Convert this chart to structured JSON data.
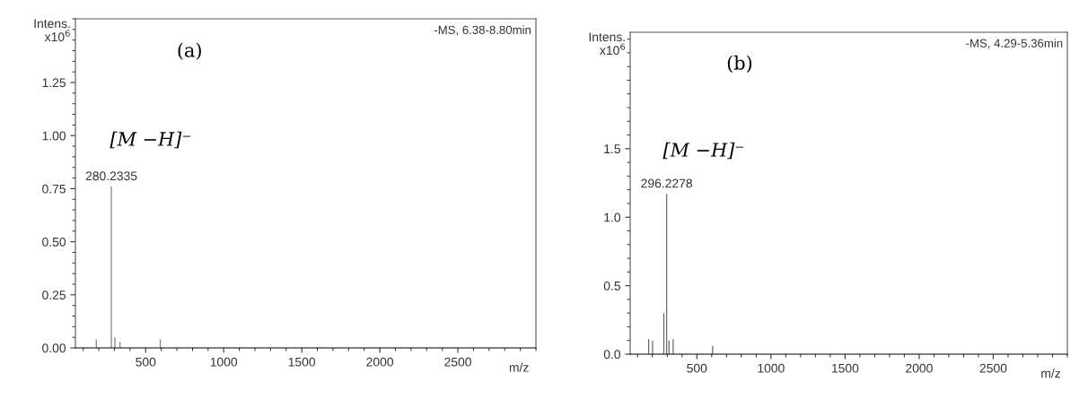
{
  "chart_data": [
    {
      "type": "bar",
      "title": "-MS, 6.38-8.80min",
      "xlabel": "m/z",
      "ylabel": "Intens.\nx10$^{6}$",
      "x": [
        184,
        280.2335,
        303,
        336,
        594
      ],
      "values": [
        0.04,
        0.76,
        0.05,
        0.03,
        0.04
      ],
      "color": "#808080",
      "xlim": [
        50,
        3000
      ],
      "xticks": [
        500,
        1000,
        1500,
        2000,
        2500
      ],
      "ylim": [
        0,
        1.55
      ],
      "yticks": [
        {
          "value": 0,
          "label": "0.00"
        },
        0.25,
        {
          "value": 0.5,
          "label": "0.50"
        },
        0.75,
        {
          "value": 1,
          "label": "1.00"
        },
        1.25
      ],
      "grid": false,
      "annotations": [
        "(a)",
        "[M −H]⁻",
        {
          "text": "280.2335",
          "x": 280.2335,
          "y": 0.76
        }
      ]
    },
    {
      "type": "bar",
      "title": "-MS, 4.29-5.36min",
      "xlabel": "m/z",
      "ylabel": "Intens.\nx10$^{6}$",
      "x": [
        175,
        201,
        277,
        296.2278,
        312,
        340,
        606
      ],
      "values": [
        0.11,
        0.1,
        0.3,
        1.17,
        0.1,
        0.11,
        0.06
      ],
      "color": "#606060",
      "xlim": [
        50,
        3000
      ],
      "xticks": [
        500,
        1000,
        1500,
        2000,
        2500
      ],
      "ylim": [
        0,
        2.35
      ],
      "yticks": [
        {
          "value": 0,
          "label": "0.0"
        },
        0.5,
        {
          "value": 1,
          "label": "1.0"
        },
        1.5
      ],
      "grid": false,
      "annotations": [
        "(b)",
        "[M −H]⁻",
        {
          "text": "296.2278",
          "x": 296.2278,
          "y": 1.17
        }
      ]
    }
  ]
}
